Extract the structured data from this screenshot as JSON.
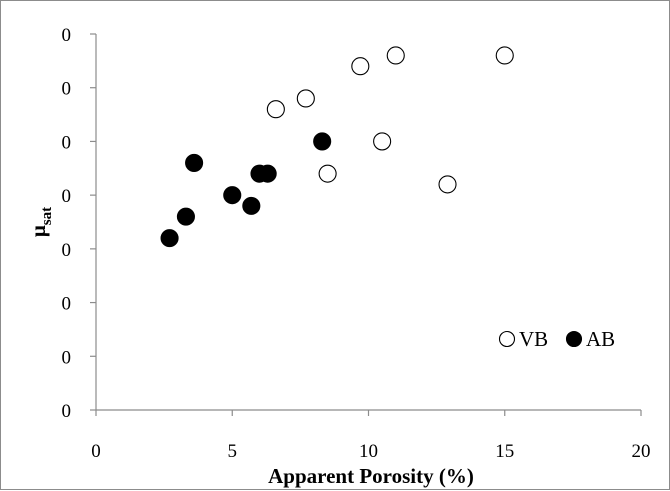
{
  "chart_data": {
    "type": "scatter",
    "title": "",
    "xlabel": "Apparent Porosity (%)",
    "ylabel_main": "μ",
    "ylabel_sub": "sat",
    "xlim": [
      0,
      20
    ],
    "x_ticks": [
      "0",
      "5",
      "10",
      "15",
      "20"
    ],
    "y_ticks": [
      "0",
      "0",
      "0",
      "0",
      "0",
      "0",
      "0",
      "0"
    ],
    "ylim": [
      0,
      7
    ],
    "grid": false,
    "legend_position": "bottom-right",
    "series": [
      {
        "name": "VB",
        "marker": "open-circle",
        "color": "#000000",
        "points": [
          {
            "x": 6.6,
            "y": 5.6
          },
          {
            "x": 7.7,
            "y": 5.8
          },
          {
            "x": 9.7,
            "y": 6.4
          },
          {
            "x": 11.0,
            "y": 6.6
          },
          {
            "x": 15.0,
            "y": 6.6
          },
          {
            "x": 8.5,
            "y": 4.4
          },
          {
            "x": 10.5,
            "y": 5.0
          },
          {
            "x": 12.9,
            "y": 4.2
          }
        ]
      },
      {
        "name": "AB",
        "marker": "filled-circle",
        "color": "#000000",
        "points": [
          {
            "x": 2.7,
            "y": 3.2
          },
          {
            "x": 3.3,
            "y": 3.6
          },
          {
            "x": 3.6,
            "y": 4.6
          },
          {
            "x": 5.0,
            "y": 4.0
          },
          {
            "x": 5.7,
            "y": 3.8
          },
          {
            "x": 6.0,
            "y": 4.4
          },
          {
            "x": 6.3,
            "y": 4.4
          },
          {
            "x": 8.3,
            "y": 5.0
          }
        ]
      }
    ]
  }
}
